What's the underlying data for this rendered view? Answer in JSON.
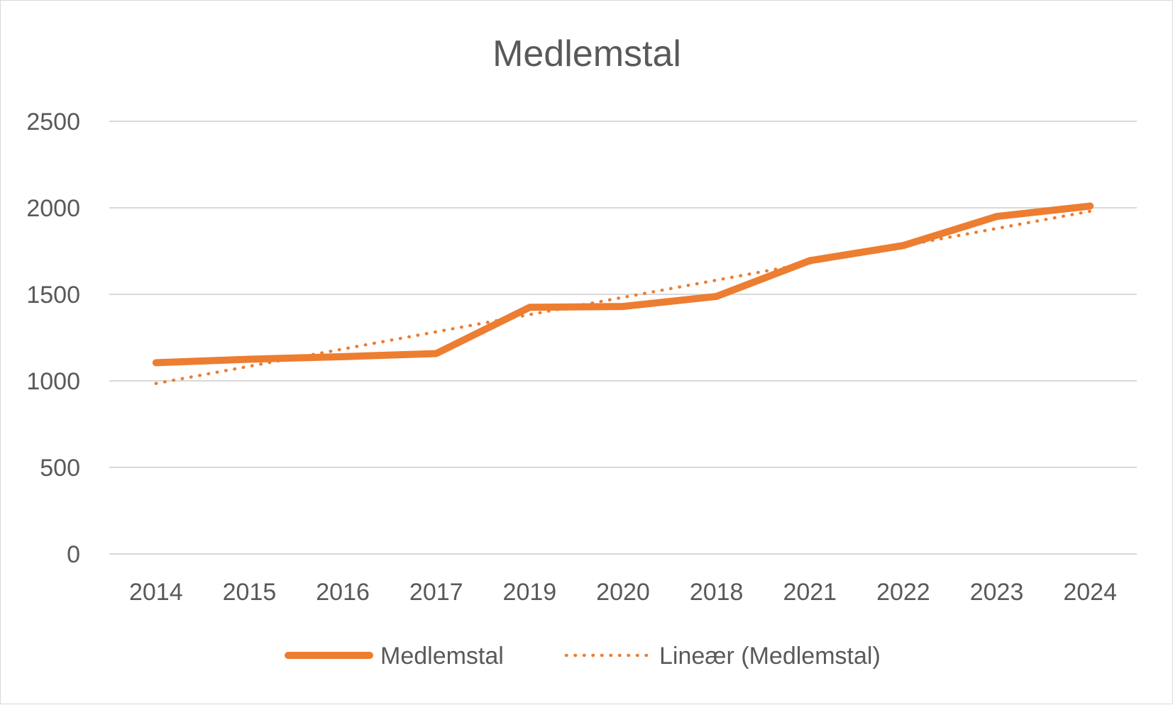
{
  "chart_data": {
    "type": "line",
    "title": "Medlemstal",
    "categories": [
      "2014",
      "2015",
      "2016",
      "2017",
      "2019",
      "2020",
      "2018",
      "2021",
      "2022",
      "2023",
      "2024"
    ],
    "series": [
      {
        "name": "Medlemstal",
        "values": [
          1105,
          1125,
          1140,
          1158,
          1425,
          1430,
          1488,
          1695,
          1782,
          1950,
          2010
        ],
        "color": "#ed7d31",
        "style": "solid"
      }
    ],
    "trendline": {
      "name": "Lineær (Medlemstal)",
      "type": "linear",
      "of_series": "Medlemstal",
      "color": "#ed7d31",
      "style": "dotted",
      "start": 985,
      "end": 1980
    },
    "yticks": [
      "0",
      "500",
      "1000",
      "1500",
      "2000",
      "2500"
    ],
    "ylim": [
      0,
      2500
    ],
    "grid": true,
    "legend": "bottom"
  }
}
